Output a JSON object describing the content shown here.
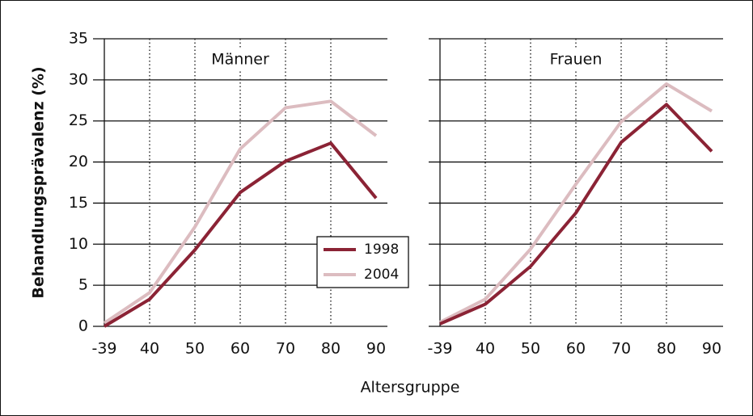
{
  "ylabel": "Behandlungsprävalenz (%)",
  "xlabel": "Altersgruppe",
  "chart_data": [
    {
      "type": "line",
      "title": "Männer",
      "categories": [
        "-39",
        "40",
        "50",
        "60",
        "70",
        "80",
        "90"
      ],
      "series": [
        {
          "name": "1998",
          "color": "#8b2335",
          "values": [
            0,
            3.3,
            9.3,
            16.3,
            20.1,
            22.3,
            15.6
          ]
        },
        {
          "name": "2004",
          "color": "#dcbcc0",
          "values": [
            0.4,
            4.1,
            12.1,
            21.6,
            26.6,
            27.4,
            23.2
          ]
        }
      ],
      "ylim": [
        0,
        35
      ],
      "yticks": [
        0,
        5,
        10,
        15,
        20,
        25,
        30,
        35
      ],
      "grid": true
    },
    {
      "type": "line",
      "title": "Frauen",
      "categories": [
        "-39",
        "40",
        "50",
        "60",
        "70",
        "80",
        "90"
      ],
      "series": [
        {
          "color": "#8b2335",
          "values": [
            0.3,
            2.7,
            7.3,
            13.8,
            22.4,
            27.0,
            21.3
          ]
        },
        {
          "color": "#dcbcc0",
          "values": [
            0.5,
            3.3,
            9.4,
            17.3,
            24.9,
            29.5,
            26.2
          ]
        }
      ],
      "ylim": [
        0,
        35
      ],
      "yticks": [
        0,
        5,
        10,
        15,
        20,
        25,
        30,
        35
      ],
      "grid": true
    }
  ]
}
